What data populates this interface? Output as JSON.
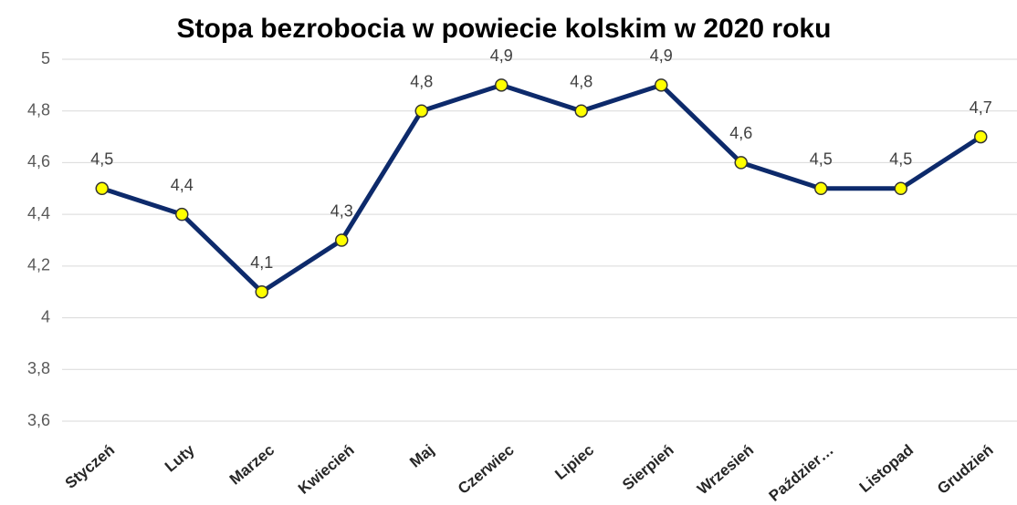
{
  "chart_data": {
    "type": "line",
    "title": "Stopa bezrobocia w powiecie kolskim w 2020 roku",
    "categories": [
      "Styczeń",
      "Luty",
      "Marzec",
      "Kwiecień",
      "Maj",
      "Czerwiec",
      "Lipiec",
      "Sierpień",
      "Wrzesień",
      "Paździer…",
      "Listopad",
      "Grudzień"
    ],
    "series": [
      {
        "name": "Stopa bezrobocia",
        "color": "#0d2a6b",
        "marker_color": "#ffff00",
        "values": [
          4.5,
          4.4,
          4.1,
          4.3,
          4.8,
          4.9,
          4.8,
          4.9,
          4.6,
          4.5,
          4.5,
          4.7
        ],
        "value_labels": [
          "4,5",
          "4,4",
          "4,1",
          "4,3",
          "4,8",
          "4,9",
          "4,8",
          "4,9",
          "4,6",
          "4,5",
          "4,5",
          "4,7"
        ]
      }
    ],
    "ylim": [
      3.6,
      5
    ],
    "yticks": [
      {
        "value": 3.6,
        "label": "3,6"
      },
      {
        "value": 3.8,
        "label": "3,8"
      },
      4,
      {
        "value": 4.2,
        "label": "4,2"
      },
      {
        "value": 4.4,
        "label": "4,4"
      },
      {
        "value": 4.6,
        "label": "4,6"
      },
      {
        "value": 4.8,
        "label": "4,8"
      },
      5
    ],
    "grid": true
  }
}
